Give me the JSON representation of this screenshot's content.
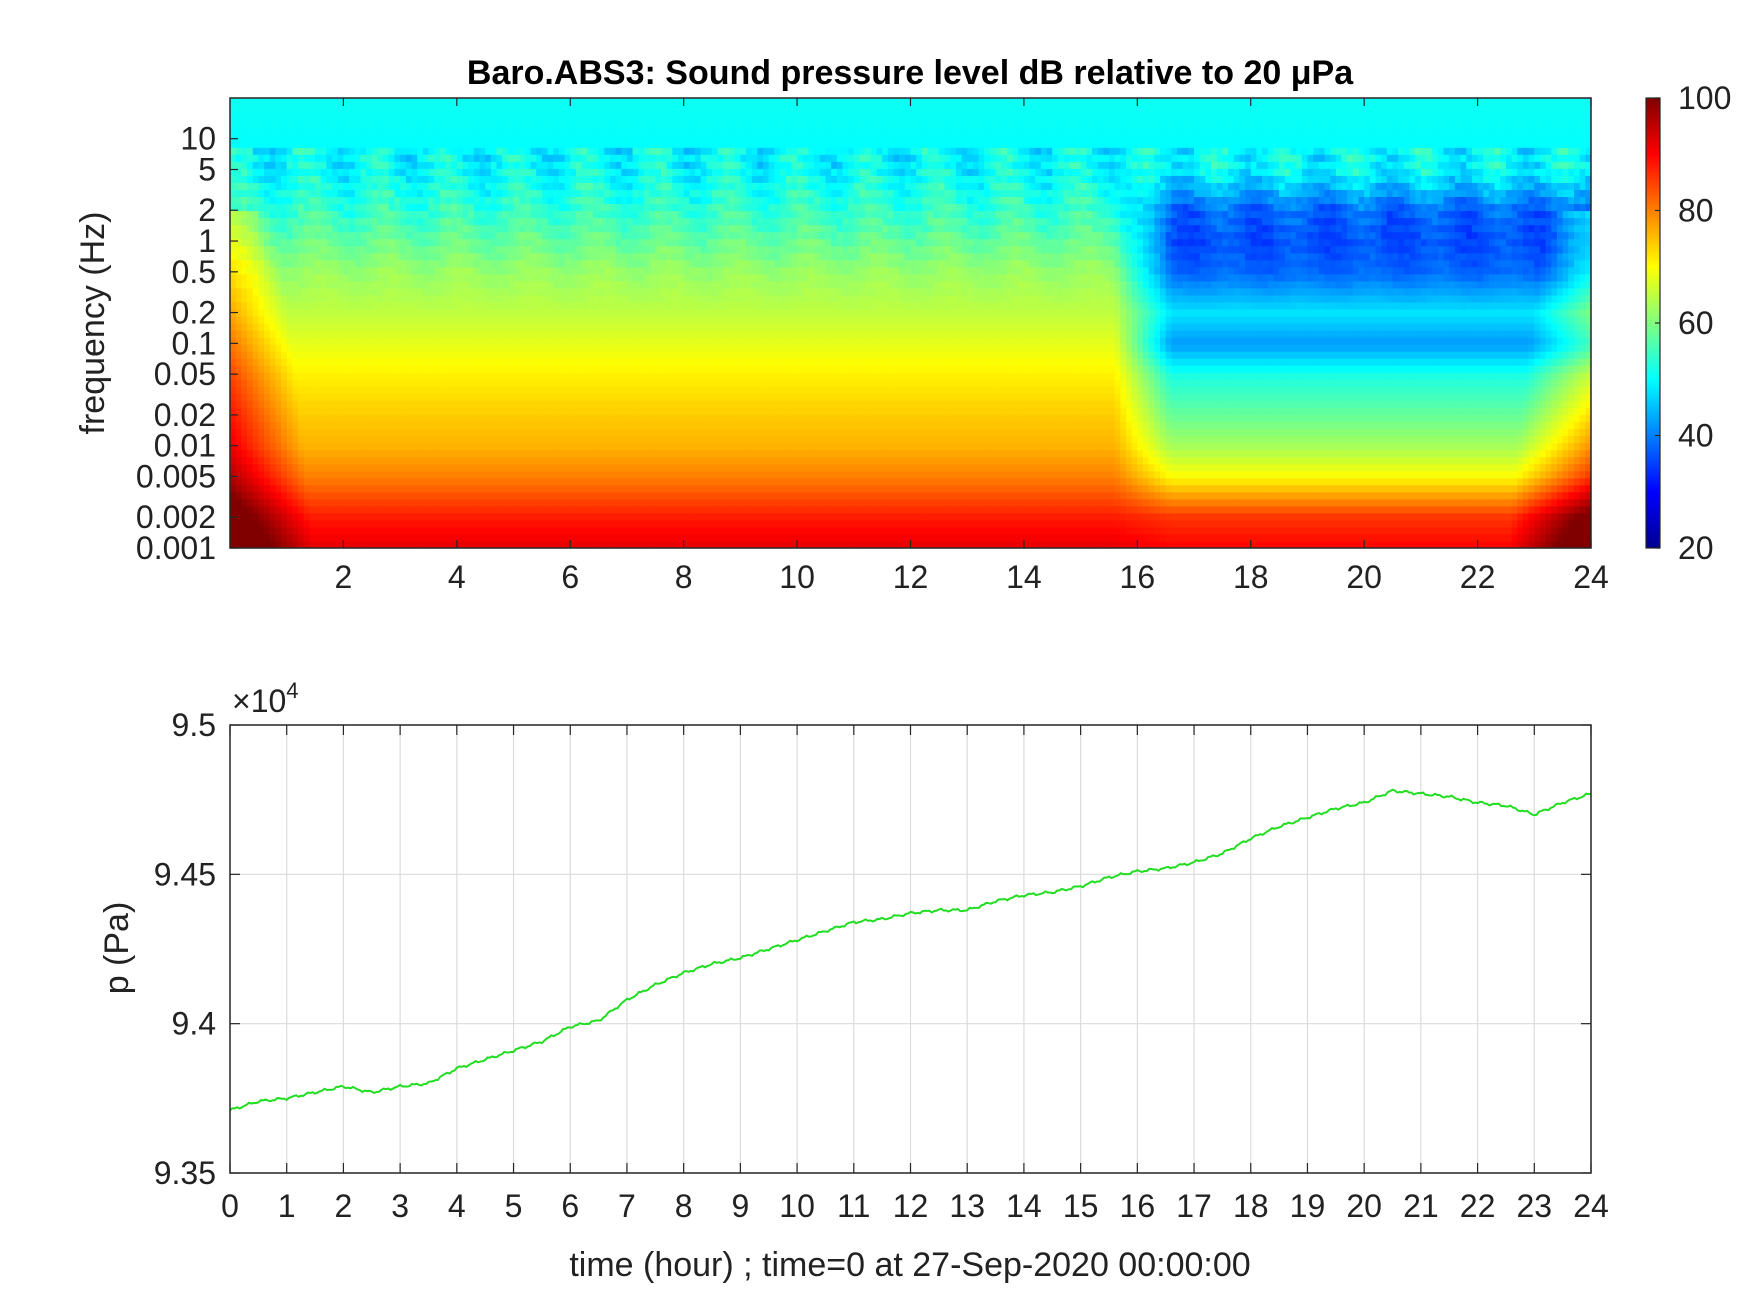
{
  "chart_data": [
    {
      "type": "heatmap",
      "title": "Baro.ABS3: Sound pressure level dB relative to 20 μPa",
      "ylabel": "frequency (Hz)",
      "xlabel": "",
      "x_ticks": [
        2,
        4,
        6,
        8,
        10,
        12,
        14,
        16,
        18,
        20,
        22,
        24
      ],
      "x_tick_labels": [
        "2",
        "4",
        "6",
        "8",
        "10",
        "12",
        "14",
        "16",
        "18",
        "20",
        "22",
        "24"
      ],
      "xlim": [
        0,
        24
      ],
      "y_scale": "log",
      "y_ticks": [
        0.001,
        0.002,
        0.005,
        0.01,
        0.02,
        0.05,
        0.1,
        0.2,
        0.5,
        1,
        2,
        5,
        10
      ],
      "y_tick_labels": [
        "0.001",
        "0.002",
        "0.005",
        "0.01",
        "0.02",
        "0.05",
        "0.1",
        "0.2",
        "0.5",
        "1",
        "2",
        "5",
        "10"
      ],
      "ylim": [
        0.001,
        25
      ],
      "colormap": "jet",
      "colorbar": {
        "range": [
          20,
          100
        ],
        "ticks": [
          20,
          40,
          60,
          80,
          100
        ],
        "tick_labels": [
          "20",
          "40",
          "60",
          "80",
          "100"
        ]
      },
      "level_dB_by_frequency": {
        "frequency": [
          0.001,
          0.002,
          0.005,
          0.01,
          0.02,
          0.05,
          0.1,
          0.2,
          0.5,
          1,
          2,
          5,
          10,
          25
        ],
        "before_16h": [
          92,
          88,
          80,
          76,
          74,
          71,
          68,
          65,
          62,
          58,
          54,
          50,
          50,
          50
        ],
        "after_16h": [
          90,
          86,
          70,
          63,
          58,
          52,
          42,
          48,
          38,
          36,
          38,
          50,
          50,
          50
        ]
      },
      "colors": {
        "low": "#00008f",
        "mid": "#00ffff",
        "high": "#800000"
      }
    },
    {
      "type": "line",
      "title": "",
      "xlabel": "time (hour) ; time=0 at 27-Sep-2020 00:00:00",
      "ylabel": "p (Pa)",
      "y_multiplier_label": "×10",
      "y_multiplier_exponent": "4",
      "xlim": [
        0,
        24
      ],
      "ylim": [
        9.35,
        9.5
      ],
      "x_ticks": [
        0,
        1,
        2,
        3,
        4,
        5,
        6,
        7,
        8,
        9,
        10,
        11,
        12,
        13,
        14,
        15,
        16,
        17,
        18,
        19,
        20,
        21,
        22,
        23,
        24
      ],
      "x_tick_labels": [
        "0",
        "1",
        "2",
        "3",
        "4",
        "5",
        "6",
        "7",
        "8",
        "9",
        "10",
        "11",
        "12",
        "13",
        "14",
        "15",
        "16",
        "17",
        "18",
        "19",
        "20",
        "21",
        "22",
        "23",
        "24"
      ],
      "y_ticks": [
        9.35,
        9.4,
        9.45,
        9.5
      ],
      "y_tick_labels": [
        "9.35",
        "9.4",
        "9.45",
        "9.5"
      ],
      "grid": true,
      "series": [
        {
          "color": "#22dd22",
          "x": [
            0,
            0.5,
            1,
            1.5,
            2,
            2.5,
            3,
            3.5,
            4,
            4.5,
            5,
            5.5,
            6,
            6.5,
            7,
            7.5,
            8,
            8.5,
            9,
            9.5,
            10,
            10.5,
            11,
            11.5,
            12,
            12.5,
            13,
            13.5,
            14,
            14.5,
            15,
            15.5,
            16,
            16.5,
            17,
            17.5,
            18,
            18.5,
            19,
            19.5,
            20,
            20.5,
            21,
            21.5,
            22,
            22.5,
            23,
            23.5,
            24
          ],
          "y": [
            9.371,
            9.374,
            9.375,
            9.377,
            9.379,
            9.377,
            9.379,
            9.38,
            9.385,
            9.388,
            9.391,
            9.394,
            9.399,
            9.401,
            9.408,
            9.413,
            9.417,
            9.42,
            9.422,
            9.425,
            9.428,
            9.431,
            9.434,
            9.435,
            9.437,
            9.438,
            9.438,
            9.441,
            9.443,
            9.444,
            9.446,
            9.449,
            9.451,
            9.452,
            9.454,
            9.457,
            9.462,
            9.466,
            9.469,
            9.472,
            9.474,
            9.478,
            9.477,
            9.476,
            9.474,
            9.473,
            9.47,
            9.474,
            9.477
          ]
        }
      ]
    }
  ]
}
